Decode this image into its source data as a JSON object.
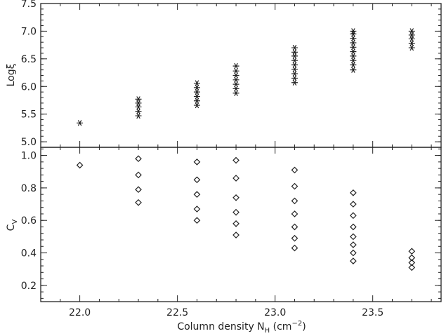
{
  "chart_data": [
    {
      "type": "scatter",
      "panel": "top",
      "ylabel": "Logξ",
      "ylim": [
        4.9,
        7.5
      ],
      "yticks": [
        "5.0",
        "5.5",
        "6.0",
        "6.5",
        "7.0",
        "7.5"
      ],
      "xlim": [
        21.8,
        23.85
      ],
      "marker": "asterisk",
      "series": [
        {
          "x": 22.0,
          "y": [
            5.34
          ]
        },
        {
          "x": 22.3,
          "y": [
            5.47,
            5.55,
            5.63,
            5.7,
            5.77
          ]
        },
        {
          "x": 22.6,
          "y": [
            5.66,
            5.74,
            5.82,
            5.9,
            5.98,
            6.06
          ]
        },
        {
          "x": 22.8,
          "y": [
            5.88,
            5.96,
            6.04,
            6.12,
            6.2,
            6.28,
            6.37
          ]
        },
        {
          "x": 23.1,
          "y": [
            6.07,
            6.15,
            6.23,
            6.31,
            6.39,
            6.47,
            6.55,
            6.62,
            6.7
          ]
        },
        {
          "x": 23.4,
          "y": [
            6.3,
            6.39,
            6.47,
            6.55,
            6.63,
            6.71,
            6.79,
            6.87,
            6.95,
            7.0
          ]
        },
        {
          "x": 23.7,
          "y": [
            6.7,
            6.78,
            6.86,
            6.93,
            7.0
          ]
        }
      ]
    },
    {
      "type": "scatter",
      "panel": "bottom",
      "ylabel": "C",
      "ylabel_sub": "V",
      "ylim": [
        0.1,
        1.05
      ],
      "yticks": [
        "0.2",
        "0.4",
        "0.6",
        "0.8",
        "1.0"
      ],
      "xlim": [
        21.8,
        23.85
      ],
      "xticks": [
        "22.0",
        "22.5",
        "23.0",
        "23.5"
      ],
      "xlabel": "Column density N",
      "xlabel_sub": "H",
      "xlabel_unit_open": " (cm",
      "xlabel_unit_sup": "−2",
      "xlabel_unit_close": ")",
      "marker": "diamond",
      "series": [
        {
          "x": 22.0,
          "y": [
            0.94
          ]
        },
        {
          "x": 22.3,
          "y": [
            0.98,
            0.88,
            0.79,
            0.71
          ]
        },
        {
          "x": 22.6,
          "y": [
            0.96,
            0.85,
            0.76,
            0.67,
            0.6
          ]
        },
        {
          "x": 22.8,
          "y": [
            0.97,
            0.86,
            0.74,
            0.65,
            0.58,
            0.51
          ]
        },
        {
          "x": 23.1,
          "y": [
            0.91,
            0.81,
            0.72,
            0.64,
            0.56,
            0.49,
            0.43
          ]
        },
        {
          "x": 23.4,
          "y": [
            0.77,
            0.7,
            0.63,
            0.56,
            0.5,
            0.45,
            0.4,
            0.35
          ]
        },
        {
          "x": 23.7,
          "y": [
            0.41,
            0.37,
            0.34,
            0.31
          ]
        }
      ]
    }
  ]
}
